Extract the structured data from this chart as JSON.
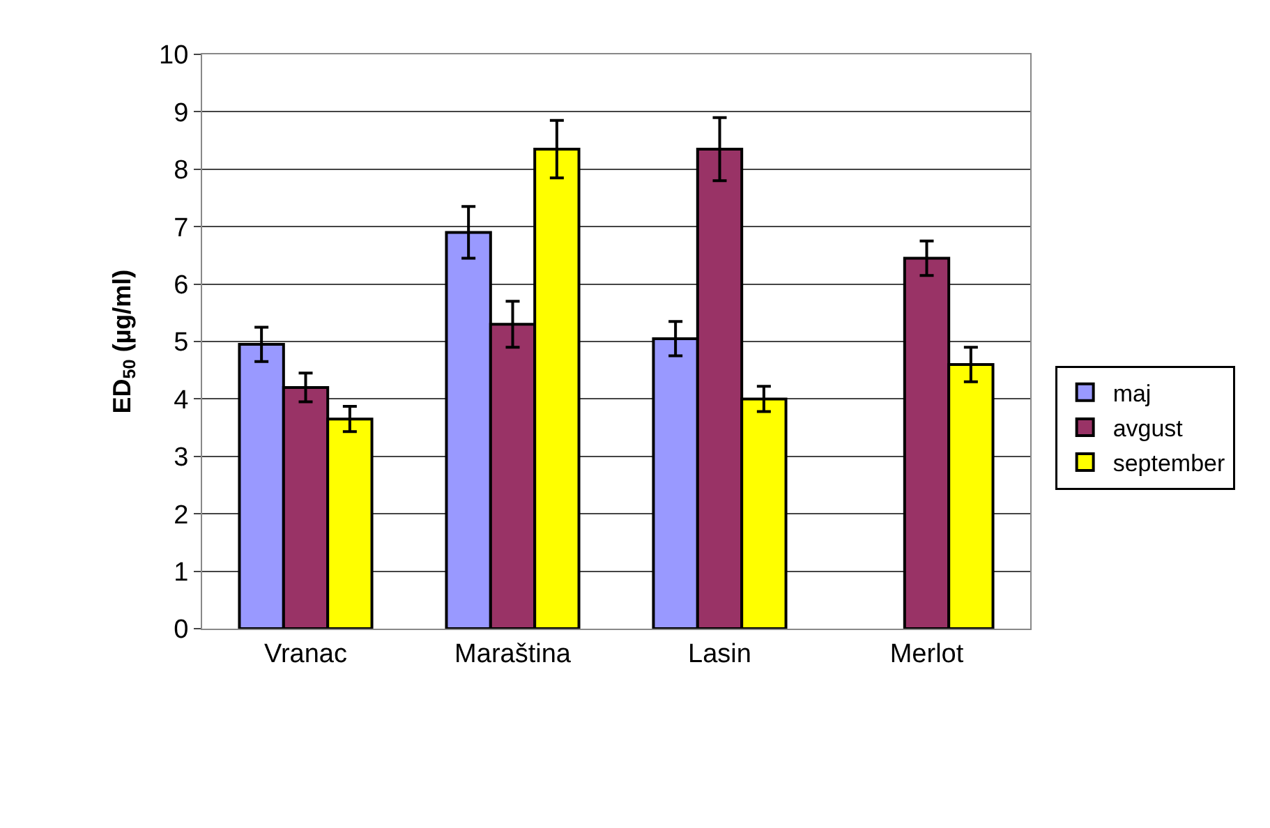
{
  "chart_data": {
    "type": "bar",
    "ylabel": "ED$_{50}$ (µg/ml)",
    "categories": [
      "Vranac",
      "Maraština",
      "Lasin",
      "Merlot"
    ],
    "series": [
      {
        "name": "maj",
        "color": "#9999ff",
        "values": [
          4.95,
          6.9,
          5.05,
          null
        ],
        "errors": [
          0.3,
          0.45,
          0.3,
          null
        ]
      },
      {
        "name": "avgust",
        "color": "#993366",
        "values": [
          4.2,
          5.3,
          8.35,
          6.45
        ],
        "errors": [
          0.25,
          0.4,
          0.55,
          0.3
        ]
      },
      {
        "name": "september",
        "color": "#ffff00",
        "values": [
          3.65,
          8.35,
          4.0,
          4.6
        ],
        "errors": [
          0.22,
          0.5,
          0.22,
          0.3
        ]
      }
    ],
    "ylim": [
      0,
      10
    ],
    "yticks": [
      0,
      1,
      2,
      3,
      4,
      5,
      6,
      7,
      8,
      9,
      10
    ],
    "grid": "y",
    "legend": "right"
  }
}
